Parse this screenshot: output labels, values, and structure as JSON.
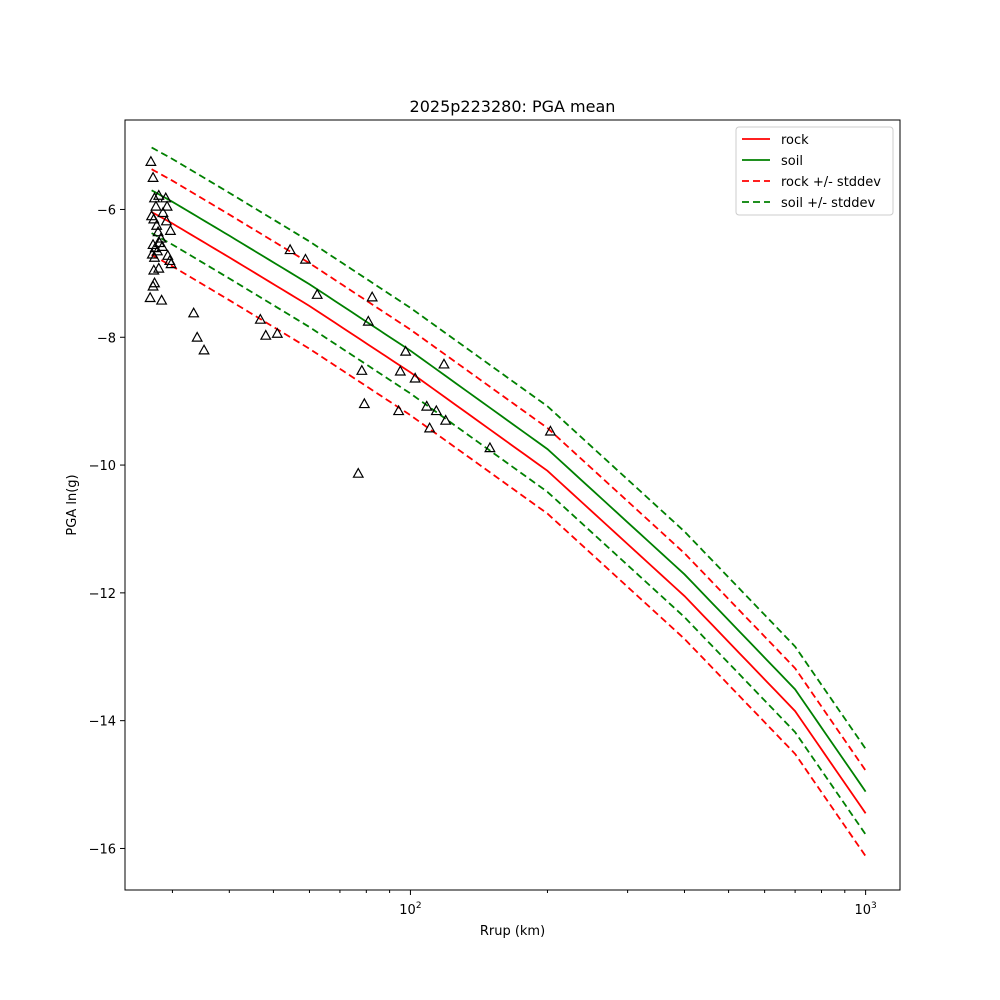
{
  "chart_data": {
    "type": "scatter",
    "title": "2025p223280: PGA mean",
    "xlabel": "Rrup (km)",
    "ylabel": "PGA ln(g)",
    "xscale": "log",
    "xlim": [
      23.6,
      1190
    ],
    "ylim": [
      -16.65,
      -4.6
    ],
    "grid": false,
    "legend": "top-right",
    "x_ticks": [
      {
        "value": 100,
        "base": "10",
        "exp": "2"
      },
      {
        "value": 1000,
        "base": "10",
        "exp": "3"
      }
    ],
    "y_ticks": [
      {
        "value": -6,
        "label": "−6"
      },
      {
        "value": -8,
        "label": "−8"
      },
      {
        "value": -10,
        "label": "−10"
      },
      {
        "value": -12,
        "label": "−12"
      },
      {
        "value": -14,
        "label": "−14"
      },
      {
        "value": -16,
        "label": "−16"
      }
    ],
    "lines": [
      {
        "name": "rock",
        "color": "#ff0000",
        "style": "solid",
        "x": [
          27,
          30,
          40,
          60,
          100,
          200,
          400,
          700,
          1000
        ],
        "y": [
          -6.04,
          -6.22,
          -6.75,
          -7.51,
          -8.55,
          -10.09,
          -12.05,
          -13.85,
          -15.45
        ]
      },
      {
        "name": "soil",
        "color": "#008000",
        "style": "solid",
        "x": [
          27,
          30,
          40,
          60,
          100,
          200,
          400,
          700,
          1000
        ],
        "y": [
          -5.7,
          -5.88,
          -6.41,
          -7.17,
          -8.21,
          -9.75,
          -11.71,
          -13.51,
          -15.11
        ]
      },
      {
        "name": "rock +/- stddev",
        "color": "#ff0000",
        "style": "dashed",
        "x": [
          27,
          30,
          40,
          60,
          100,
          200,
          400,
          700,
          1000
        ],
        "y": [
          -5.37,
          -5.55,
          -6.08,
          -6.84,
          -7.88,
          -9.42,
          -11.38,
          -13.18,
          -14.78
        ]
      },
      {
        "name": "",
        "color": "#ff0000",
        "style": "dashed",
        "x": [
          27,
          30,
          40,
          60,
          100,
          200,
          400,
          700,
          1000
        ],
        "y": [
          -6.71,
          -6.89,
          -7.42,
          -8.18,
          -9.22,
          -10.76,
          -12.72,
          -14.52,
          -16.12
        ]
      },
      {
        "name": "soil +/- stddev",
        "color": "#008000",
        "style": "dashed",
        "x": [
          27,
          30,
          40,
          60,
          100,
          200,
          400,
          700,
          1000
        ],
        "y": [
          -5.03,
          -5.21,
          -5.74,
          -6.5,
          -7.54,
          -9.08,
          -11.04,
          -12.84,
          -14.44
        ]
      },
      {
        "name": "",
        "color": "#008000",
        "style": "dashed",
        "x": [
          27,
          30,
          40,
          60,
          100,
          200,
          400,
          700,
          1000
        ],
        "y": [
          -6.37,
          -6.55,
          -7.08,
          -7.84,
          -8.88,
          -10.42,
          -12.38,
          -14.18,
          -15.78
        ]
      }
    ],
    "observations": {
      "marker": "triangle",
      "color": "#000000",
      "points": [
        [
          26.9,
          -5.25
        ],
        [
          27.2,
          -5.5
        ],
        [
          27.4,
          -5.82
        ],
        [
          27.6,
          -5.95
        ],
        [
          27.0,
          -6.1
        ],
        [
          27.3,
          -6.15
        ],
        [
          27.7,
          -6.25
        ],
        [
          27.9,
          -6.35
        ],
        [
          27.2,
          -6.55
        ],
        [
          27.5,
          -6.6
        ],
        [
          27.8,
          -6.65
        ],
        [
          27.1,
          -6.7
        ],
        [
          27.4,
          -6.75
        ],
        [
          28.0,
          -5.78
        ],
        [
          28.6,
          -6.05
        ],
        [
          29.0,
          -5.82
        ],
        [
          29.2,
          -5.95
        ],
        [
          29.1,
          -6.18
        ],
        [
          29.7,
          -6.33
        ],
        [
          28.3,
          -6.45
        ],
        [
          28.1,
          -6.52
        ],
        [
          28.5,
          -6.58
        ],
        [
          29.3,
          -6.72
        ],
        [
          29.6,
          -6.8
        ],
        [
          29.8,
          -6.85
        ],
        [
          27.3,
          -6.95
        ],
        [
          28.0,
          -6.92
        ],
        [
          27.4,
          -7.15
        ],
        [
          27.2,
          -7.2
        ],
        [
          26.8,
          -7.38
        ],
        [
          28.4,
          -7.42
        ],
        [
          33.4,
          -7.62
        ],
        [
          34.0,
          -8.0
        ],
        [
          35.2,
          -8.2
        ],
        [
          46.8,
          -7.72
        ],
        [
          48.1,
          -7.97
        ],
        [
          51.0,
          -7.94
        ],
        [
          54.4,
          -6.63
        ],
        [
          58.8,
          -6.78
        ],
        [
          62.4,
          -7.33
        ],
        [
          78.2,
          -8.52
        ],
        [
          79.2,
          -9.04
        ],
        [
          80.8,
          -7.75
        ],
        [
          82.4,
          -7.37
        ],
        [
          94.2,
          -9.15
        ],
        [
          95.0,
          -8.53
        ],
        [
          97.6,
          -8.22
        ],
        [
          102.4,
          -8.64
        ],
        [
          108.6,
          -9.08
        ],
        [
          110.2,
          -9.42
        ],
        [
          114.0,
          -9.15
        ],
        [
          118.5,
          -8.42
        ],
        [
          119.5,
          -9.3
        ],
        [
          149.5,
          -9.73
        ],
        [
          203.0,
          -9.47
        ],
        [
          76.8,
          -10.13
        ]
      ]
    }
  }
}
